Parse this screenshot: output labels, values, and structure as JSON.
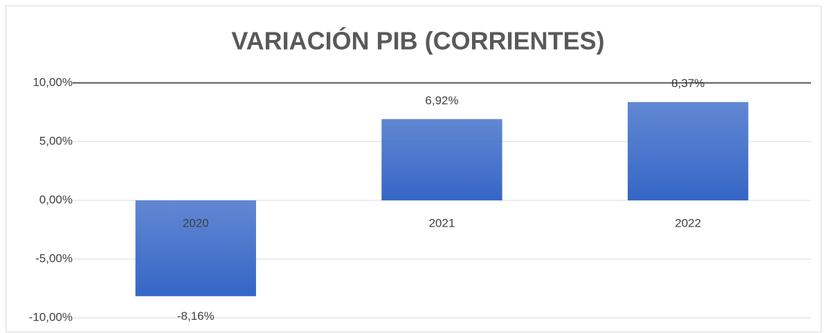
{
  "chart_data": {
    "type": "bar",
    "title": "VARIACIÓN PIB (CORRIENTES)",
    "categories": [
      "2020",
      "2021",
      "2022"
    ],
    "values": [
      -8.16,
      6.92,
      8.37
    ],
    "value_labels": [
      "-8,16%",
      "6,92%",
      "8,37%"
    ],
    "color": "#3566c6",
    "ylim": [
      -10,
      10
    ],
    "yticks": [
      {
        "value": -10,
        "label": "-10,00%"
      },
      {
        "value": -5,
        "label": "-5,00%"
      },
      {
        "value": 0,
        "label": "0,00%"
      },
      {
        "value": 5,
        "label": "5,00%"
      },
      {
        "value": 10,
        "label": "10,00%"
      }
    ],
    "grid": true
  }
}
